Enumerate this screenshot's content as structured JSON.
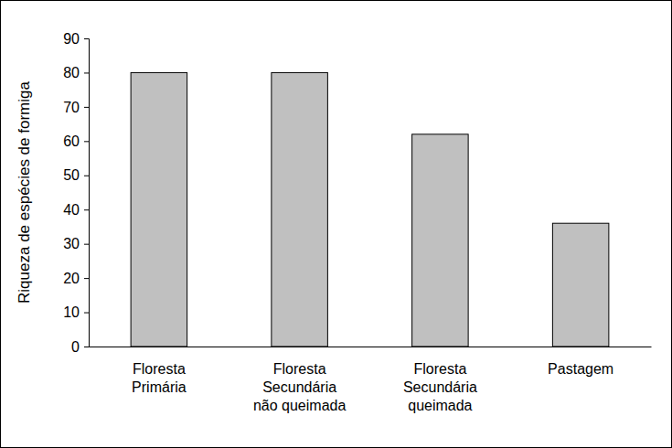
{
  "chart_data": {
    "type": "bar",
    "y_label": "Riqueza de espécies de formiga",
    "categories": [
      "Floresta\nPrimária",
      "Floresta\nSecundária\nnão queimada",
      "Floresta\nSecundária\nqueimada",
      "Pastagem"
    ],
    "values": [
      80,
      80,
      62,
      36
    ],
    "color": "#c0c0c0",
    "ylim": [
      0,
      90
    ],
    "yticks": [
      0,
      10,
      20,
      30,
      40,
      50,
      60,
      70,
      80,
      90
    ],
    "grid": false
  }
}
